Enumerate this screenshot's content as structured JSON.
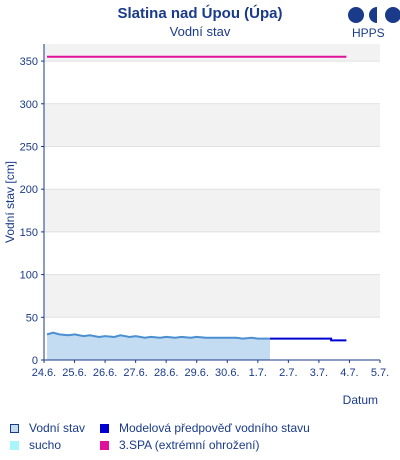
{
  "header": {
    "title": "Slatina nad Úpou (Úpa)",
    "subtitle": "Vodní stav",
    "logo_label": "HPPS"
  },
  "colors": {
    "axis": "#1a3a8a",
    "observed": "#4a8fcf",
    "observed_fill": "#c4dcf2",
    "forecast": "#0000d0",
    "drought": "#a8f5fb",
    "spa3": "#e0109a",
    "band": "#f2f2f2"
  },
  "chart_data": {
    "type": "line",
    "ylabel": "Vodní stav [cm]",
    "xlabel": "Datum",
    "ylim": [
      0,
      370
    ],
    "yticks": [
      0,
      50,
      100,
      150,
      200,
      250,
      300,
      350
    ],
    "xticks": [
      "24.6.",
      "25.6.",
      "26.6.",
      "27.6.",
      "28.6.",
      "29.6.",
      "30.6.",
      "1.7.",
      "2.7.",
      "3.7.",
      "4.7.",
      "5.7."
    ],
    "xlim_days": [
      0,
      11
    ],
    "thresholds": [
      {
        "name": "3.SPA (extrémní ohrožení)",
        "value": 355,
        "x_start": 0.1,
        "x_end": 9.9
      }
    ],
    "series": [
      {
        "name": "Vodní stav",
        "x": [
          0.1,
          0.3,
          0.5,
          0.8,
          1.0,
          1.3,
          1.5,
          1.8,
          2.0,
          2.3,
          2.5,
          2.8,
          3.0,
          3.3,
          3.5,
          3.8,
          4.0,
          4.3,
          4.5,
          4.8,
          5.0,
          5.3,
          5.5,
          5.8,
          6.0,
          6.3,
          6.5,
          6.8,
          7.0,
          7.3,
          7.4
        ],
        "values": [
          30,
          32,
          30,
          29,
          30,
          28,
          29,
          27,
          28,
          27,
          29,
          27,
          28,
          26,
          27,
          26,
          27,
          26,
          27,
          26,
          27,
          26,
          26,
          26,
          26,
          26,
          25,
          26,
          25,
          25,
          25
        ]
      },
      {
        "name": "Modelová předpověď vodního stavu",
        "x": [
          7.4,
          8.0,
          9.0,
          9.4,
          9.4,
          9.9
        ],
        "values": [
          25,
          25,
          25,
          25,
          23,
          23
        ]
      }
    ]
  },
  "legend": [
    {
      "label": "Vodní stav",
      "key": "observed"
    },
    {
      "label": "Modelová předpověď vodního stavu",
      "key": "forecast"
    },
    {
      "label": "sucho",
      "key": "drought"
    },
    {
      "label": "3.SPA (extrémní ohrožení)",
      "key": "spa3"
    }
  ]
}
